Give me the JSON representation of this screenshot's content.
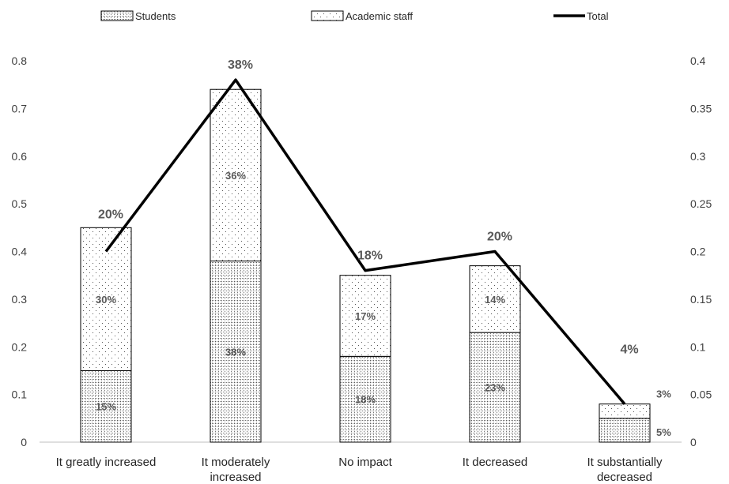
{
  "chart_data": {
    "type": "bar",
    "stacked": true,
    "categories": [
      "It greatly increased",
      "It moderately increased",
      "No impact",
      "It decreased",
      "It substantially decreased"
    ],
    "series": [
      {
        "name": "Students",
        "axis": "left",
        "pattern": "grid-dots",
        "values": [
          0.15,
          0.38,
          0.18,
          0.23,
          0.05
        ],
        "labels": [
          "15%",
          "38%",
          "18%",
          "23%",
          "5%"
        ]
      },
      {
        "name": "Academic staff",
        "axis": "left",
        "pattern": "sparse-dots",
        "values": [
          0.3,
          0.36,
          0.17,
          0.14,
          0.03
        ],
        "labels": [
          "30%",
          "36%",
          "17%",
          "14%",
          "3%"
        ]
      },
      {
        "name": "Total",
        "type": "line",
        "axis": "right",
        "values": [
          0.2,
          0.38,
          0.18,
          0.2,
          0.04
        ],
        "labels": [
          "20%",
          "38%",
          "18%",
          "20%",
          "4%"
        ]
      }
    ],
    "y_left": {
      "ylim": [
        0,
        0.8
      ],
      "ticks": [
        "0",
        "0.1",
        "0.2",
        "0.3",
        "0.4",
        "0.5",
        "0.6",
        "0.7",
        "0.8"
      ]
    },
    "y_right": {
      "ylim": [
        0,
        0.4
      ],
      "ticks": [
        "0",
        "0.05",
        "0.1",
        "0.15",
        "0.2",
        "0.25",
        "0.3",
        "0.35",
        "0.4"
      ]
    },
    "legend_position": "top",
    "grid": false,
    "colors": {
      "line": "#000000",
      "bar_border": "#000000",
      "text": "#404040"
    }
  }
}
